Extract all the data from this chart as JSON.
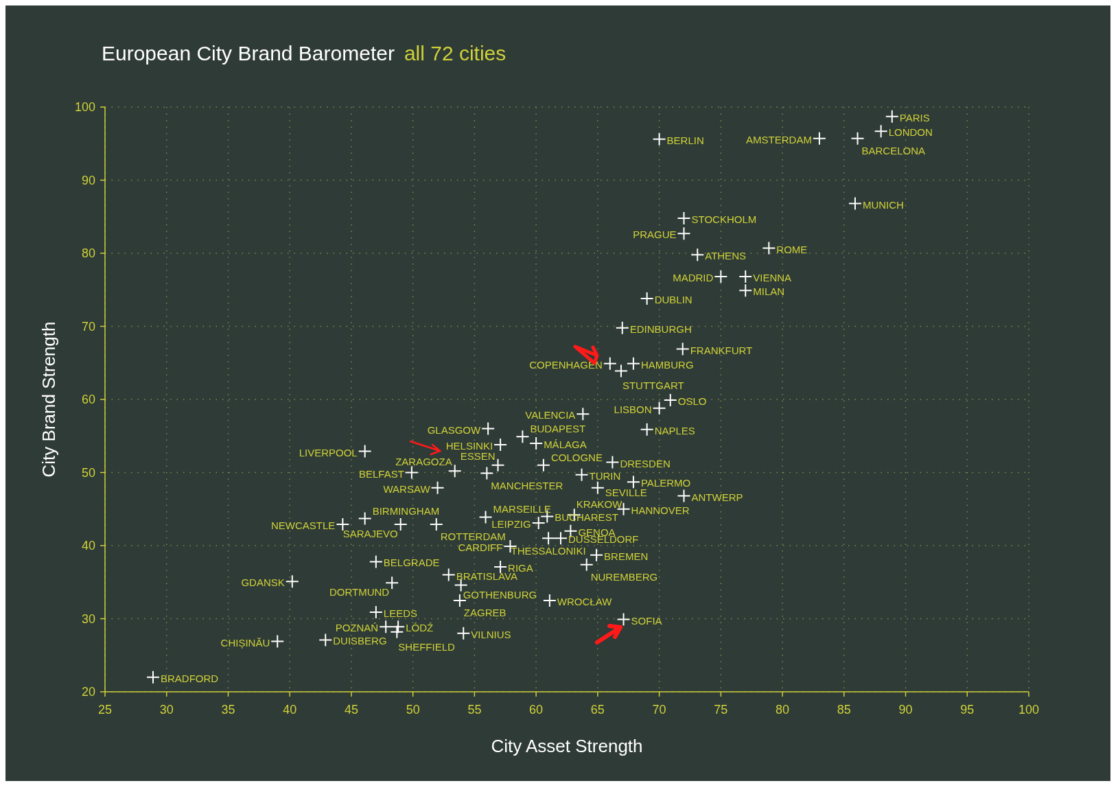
{
  "chart_data": {
    "type": "scatter",
    "title": "European City Brand Barometer",
    "subtitle": "all 72 cities",
    "xlabel": "City Asset Strength",
    "ylabel": "City Brand Strength",
    "xlim": [
      25,
      100
    ],
    "xticks": [
      25,
      30,
      35,
      40,
      45,
      50,
      55,
      60,
      65,
      70,
      75,
      80,
      85,
      90,
      95,
      100
    ],
    "ylim": [
      20,
      100
    ],
    "yticks": [
      20,
      30,
      40,
      50,
      60,
      70,
      80,
      90,
      100
    ],
    "grid": true,
    "marker": "cross",
    "series": [
      {
        "color": "#ffffff",
        "x": [
          88.9,
          88.0,
          86.1,
          83.0,
          70.0,
          85.9,
          72.0,
          72.0,
          73.1,
          78.9,
          75.0,
          77.0,
          77.0,
          69.0,
          67.0,
          71.9,
          66.0,
          67.9,
          66.9,
          70.9,
          70.0,
          63.8,
          69.0,
          56.1,
          58.9,
          60.0,
          57.1,
          46.1,
          60.6,
          66.2,
          56.9,
          53.4,
          49.9,
          63.7,
          56.0,
          67.9,
          52.0,
          65.0,
          72.0,
          67.1,
          63.1,
          46.1,
          55.9,
          60.9,
          60.2,
          44.3,
          49.0,
          51.9,
          62.8,
          62.0,
          61.0,
          57.9,
          57.1,
          64.9,
          64.1,
          47.0,
          52.9,
          40.2,
          48.3,
          53.9,
          53.8,
          61.1,
          47.0,
          67.1,
          47.8,
          48.8,
          48.7,
          54.1,
          42.9,
          39.0,
          28.9
        ],
        "values": [
          98.7,
          96.7,
          95.7,
          95.7,
          95.6,
          86.8,
          84.8,
          82.7,
          79.8,
          80.7,
          76.8,
          76.8,
          74.9,
          73.8,
          69.8,
          66.9,
          64.9,
          64.9,
          63.9,
          59.9,
          58.8,
          58.0,
          55.9,
          56.0,
          54.9,
          54.0,
          53.8,
          52.9,
          51.0,
          51.4,
          51.0,
          50.2,
          50.0,
          49.7,
          49.9,
          48.7,
          47.9,
          47.9,
          46.8,
          45.0,
          44.2,
          43.7,
          43.9,
          44.0,
          43.1,
          42.9,
          42.9,
          42.9,
          42.0,
          41.0,
          41.0,
          39.9,
          37.1,
          38.7,
          37.4,
          37.8,
          36.0,
          35.1,
          34.9,
          34.6,
          32.5,
          32.5,
          30.9,
          29.9,
          28.9,
          28.9,
          28.2,
          28.0,
          27.1,
          26.9,
          22.0
        ]
      }
    ],
    "annotations": [
      {
        "text": "PARIS",
        "x": 88.9,
        "y": 98.7
      },
      {
        "text": "LONDON",
        "x": 88.0,
        "y": 96.7
      },
      {
        "text": "BARCELONA",
        "x": 86.1,
        "y": 95.7
      },
      {
        "text": "AMSTERDAM",
        "x": 83.0,
        "y": 95.7
      },
      {
        "text": "BERLIN",
        "x": 70.0,
        "y": 95.6
      },
      {
        "text": "MUNICH",
        "x": 85.9,
        "y": 86.8
      },
      {
        "text": "STOCKHOLM",
        "x": 72.0,
        "y": 84.8
      },
      {
        "text": "PRAGUE",
        "x": 72.0,
        "y": 82.7
      },
      {
        "text": "ATHENS",
        "x": 73.1,
        "y": 79.8
      },
      {
        "text": "ROME",
        "x": 78.9,
        "y": 80.7
      },
      {
        "text": "MADRID",
        "x": 75.0,
        "y": 76.8
      },
      {
        "text": "VIENNA",
        "x": 77.0,
        "y": 76.8
      },
      {
        "text": "MILAN",
        "x": 77.0,
        "y": 74.9
      },
      {
        "text": "DUBLIN",
        "x": 69.0,
        "y": 73.8
      },
      {
        "text": "EDINBURGH",
        "x": 67.0,
        "y": 69.8
      },
      {
        "text": "FRANKFURT",
        "x": 71.9,
        "y": 66.9
      },
      {
        "text": "COPENHAGEN",
        "x": 66.0,
        "y": 64.9
      },
      {
        "text": "HAMBURG",
        "x": 67.9,
        "y": 64.9
      },
      {
        "text": "STUTTGART",
        "x": 66.9,
        "y": 63.9
      },
      {
        "text": "OSLO",
        "x": 70.9,
        "y": 59.9
      },
      {
        "text": "LISBON",
        "x": 70.0,
        "y": 58.8
      },
      {
        "text": "VALENCIA",
        "x": 63.8,
        "y": 58.0
      },
      {
        "text": "NAPLES",
        "x": 69.0,
        "y": 55.9
      },
      {
        "text": "GLASGOW",
        "x": 56.1,
        "y": 56.0
      },
      {
        "text": "BUDAPEST",
        "x": 58.9,
        "y": 54.9
      },
      {
        "text": "MÁLAGA",
        "x": 60.0,
        "y": 54.0
      },
      {
        "text": "HELSINKI",
        "x": 57.1,
        "y": 53.8
      },
      {
        "text": "LIVERPOOL",
        "x": 46.1,
        "y": 52.9
      },
      {
        "text": "COLOGNE",
        "x": 60.6,
        "y": 51.0
      },
      {
        "text": "DRESDEN",
        "x": 66.2,
        "y": 51.4
      },
      {
        "text": "ESSEN",
        "x": 56.9,
        "y": 51.0
      },
      {
        "text": "ZARAGOZA",
        "x": 53.4,
        "y": 50.2
      },
      {
        "text": "BELFAST",
        "x": 49.9,
        "y": 50.0
      },
      {
        "text": "TURIN",
        "x": 63.7,
        "y": 49.7
      },
      {
        "text": "MANCHESTER",
        "x": 56.0,
        "y": 49.9
      },
      {
        "text": "PALERMO",
        "x": 67.9,
        "y": 48.7
      },
      {
        "text": "WARSAW",
        "x": 52.0,
        "y": 47.9
      },
      {
        "text": "SEVILLE",
        "x": 65.0,
        "y": 47.9
      },
      {
        "text": "ANTWERP",
        "x": 72.0,
        "y": 46.8
      },
      {
        "text": "HANNOVER",
        "x": 67.1,
        "y": 45.0
      },
      {
        "text": "KRAKOW",
        "x": 63.1,
        "y": 44.2
      },
      {
        "text": "BIRMINGHAM",
        "x": 46.1,
        "y": 43.7
      },
      {
        "text": "MARSEILLE",
        "x": 55.9,
        "y": 43.9
      },
      {
        "text": "BUCHAREST",
        "x": 60.9,
        "y": 44.0
      },
      {
        "text": "LEIPZIG",
        "x": 60.2,
        "y": 43.1
      },
      {
        "text": "NEWCASTLE",
        "x": 44.3,
        "y": 42.9
      },
      {
        "text": "SARAJEVO",
        "x": 49.0,
        "y": 42.9
      },
      {
        "text": "ROTTERDAM",
        "x": 51.9,
        "y": 42.9
      },
      {
        "text": "GENOA",
        "x": 62.8,
        "y": 42.0
      },
      {
        "text": "DUSSELDORF",
        "x": 62.0,
        "y": 41.0
      },
      {
        "text": "THESSALONIKI",
        "x": 61.0,
        "y": 41.0
      },
      {
        "text": "CARDIFF",
        "x": 57.9,
        "y": 39.9
      },
      {
        "text": "RIGA",
        "x": 57.1,
        "y": 37.1
      },
      {
        "text": "BREMEN",
        "x": 64.9,
        "y": 38.7
      },
      {
        "text": "NUREMBERG",
        "x": 64.1,
        "y": 37.4
      },
      {
        "text": "BELGRADE",
        "x": 47.0,
        "y": 37.8
      },
      {
        "text": "BRATISLAVA",
        "x": 52.9,
        "y": 36.0
      },
      {
        "text": "GDANSK",
        "x": 40.2,
        "y": 35.1
      },
      {
        "text": "DORTMUND",
        "x": 48.3,
        "y": 34.9
      },
      {
        "text": "GOTHENBURG",
        "x": 53.9,
        "y": 34.6
      },
      {
        "text": "ZAGREB",
        "x": 53.8,
        "y": 32.5
      },
      {
        "text": "WROCŁAW",
        "x": 61.1,
        "y": 32.5
      },
      {
        "text": "LEEDS",
        "x": 47.0,
        "y": 30.9
      },
      {
        "text": "SOFIA",
        "x": 67.1,
        "y": 29.9
      },
      {
        "text": "POZNAŃ",
        "x": 47.8,
        "y": 28.9
      },
      {
        "text": "LÓDŹ",
        "x": 48.8,
        "y": 28.9
      },
      {
        "text": "SHEFFIELD",
        "x": 48.7,
        "y": 28.2
      },
      {
        "text": "VILNIUS",
        "x": 54.1,
        "y": 28.0
      },
      {
        "text": "DUISBERG",
        "x": 42.9,
        "y": 27.1
      },
      {
        "text": "CHIȘINĂU",
        "x": 39.0,
        "y": 26.9
      },
      {
        "text": "BRADFORD",
        "x": 28.9,
        "y": 22.0
      }
    ]
  }
}
